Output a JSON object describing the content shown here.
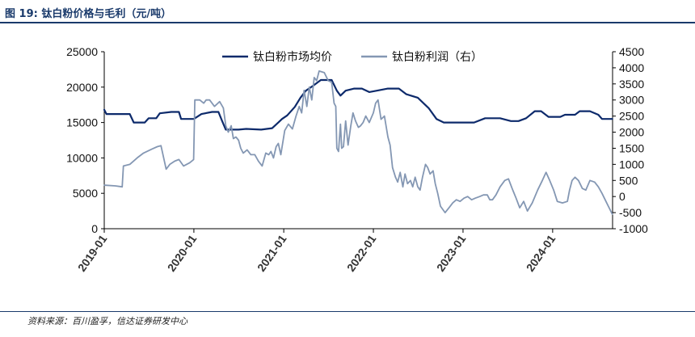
{
  "header": {
    "figure_title": "图 19:  钛白粉价格与毛利（元/吨）"
  },
  "footer": {
    "source": "资料来源：百川盈孚，信达证券研发中心"
  },
  "colors": {
    "price_line": "#0d2a6b",
    "profit_line": "#8497b3",
    "axis": "#000000",
    "title": "#1a3a6b"
  },
  "chart_data": {
    "type": "line",
    "title": "",
    "xlabel": "",
    "ylabel_left": "",
    "ylabel_right": "",
    "grid": false,
    "legend_position": "top-center",
    "x_ticks": [
      "2019-01",
      "2020-01",
      "2021-01",
      "2022-01",
      "2023-01",
      "2024-01"
    ],
    "ylim_left": [
      0,
      25000
    ],
    "yticks_left": [
      "0",
      "5000",
      "10000",
      "15000",
      "20000",
      "25000"
    ],
    "ylim_right": [
      -1000,
      4500
    ],
    "yticks_right": [
      "-1000",
      "-500",
      "0",
      "500",
      "1000",
      "1500",
      "2000",
      "2500",
      "3000",
      "3500",
      "4000",
      "4500"
    ],
    "series": [
      {
        "name": "钛白粉市场均价",
        "axis": "left",
        "color": "#0d2a6b",
        "points": [
          [
            "2019-01-01",
            16800
          ],
          [
            "2019-01-10",
            16200
          ],
          [
            "2019-03-15",
            16200
          ],
          [
            "2019-04-15",
            16200
          ],
          [
            "2019-05-01",
            15000
          ],
          [
            "2019-06-15",
            15000
          ],
          [
            "2019-07-01",
            15600
          ],
          [
            "2019-08-01",
            15600
          ],
          [
            "2019-08-15",
            16300
          ],
          [
            "2019-10-01",
            16500
          ],
          [
            "2019-11-01",
            16500
          ],
          [
            "2019-11-10",
            15500
          ],
          [
            "2020-01-01",
            15500
          ],
          [
            "2020-02-01",
            16200
          ],
          [
            "2020-03-15",
            16500
          ],
          [
            "2020-04-10",
            16500
          ],
          [
            "2020-04-25",
            15200
          ],
          [
            "2020-05-10",
            14000
          ],
          [
            "2020-07-01",
            14000
          ],
          [
            "2020-08-01",
            14100
          ],
          [
            "2020-10-01",
            14000
          ],
          [
            "2020-11-15",
            14200
          ],
          [
            "2020-12-10",
            15000
          ],
          [
            "2020-12-25",
            15500
          ],
          [
            "2021-01-15",
            16000
          ],
          [
            "2021-02-15",
            17200
          ],
          [
            "2021-03-10",
            18500
          ],
          [
            "2021-04-01",
            19500
          ],
          [
            "2021-05-01",
            20200
          ],
          [
            "2021-06-01",
            21000
          ],
          [
            "2021-07-15",
            21000
          ],
          [
            "2021-08-05",
            19500
          ],
          [
            "2021-08-20",
            18800
          ],
          [
            "2021-09-10",
            19500
          ],
          [
            "2021-10-15",
            19800
          ],
          [
            "2021-11-15",
            19800
          ],
          [
            "2021-12-15",
            19300
          ],
          [
            "2022-01-15",
            19500
          ],
          [
            "2022-03-01",
            19800
          ],
          [
            "2022-04-15",
            19800
          ],
          [
            "2022-05-15",
            19000
          ],
          [
            "2022-07-01",
            18500
          ],
          [
            "2022-08-15",
            17000
          ],
          [
            "2022-09-15",
            15500
          ],
          [
            "2022-10-15",
            15000
          ],
          [
            "2022-12-15",
            15000
          ],
          [
            "2023-01-15",
            15000
          ],
          [
            "2023-02-15",
            15000
          ],
          [
            "2023-04-01",
            15600
          ],
          [
            "2023-06-01",
            15600
          ],
          [
            "2023-07-15",
            15200
          ],
          [
            "2023-08-15",
            15200
          ],
          [
            "2023-09-15",
            15600
          ],
          [
            "2023-10-20",
            16600
          ],
          [
            "2023-11-15",
            16600
          ],
          [
            "2023-12-15",
            15800
          ],
          [
            "2024-02-01",
            15800
          ],
          [
            "2024-02-20",
            16100
          ],
          [
            "2024-04-01",
            16100
          ],
          [
            "2024-04-20",
            16600
          ],
          [
            "2024-06-01",
            16600
          ],
          [
            "2024-07-05",
            16100
          ],
          [
            "2024-07-20",
            15500
          ],
          [
            "2024-08-31",
            15500
          ]
        ]
      },
      {
        "name": "钛白粉利润（右）",
        "axis": "right",
        "color": "#8497b3",
        "points": [
          [
            "2019-01-01",
            350
          ],
          [
            "2019-01-05",
            350
          ],
          [
            "2019-02-15",
            330
          ],
          [
            "2019-03-15",
            300
          ],
          [
            "2019-03-20",
            950
          ],
          [
            "2019-04-15",
            1000
          ],
          [
            "2019-05-15",
            1200
          ],
          [
            "2019-06-10",
            1350
          ],
          [
            "2019-07-15",
            1480
          ],
          [
            "2019-08-05",
            1550
          ],
          [
            "2019-08-20",
            1580
          ],
          [
            "2019-09-10",
            850
          ],
          [
            "2019-09-25",
            1000
          ],
          [
            "2019-10-15",
            1100
          ],
          [
            "2019-11-01",
            1150
          ],
          [
            "2019-11-20",
            950
          ],
          [
            "2019-12-15",
            1050
          ],
          [
            "2019-12-31",
            1150
          ],
          [
            "2020-01-05",
            3000
          ],
          [
            "2020-01-25",
            3000
          ],
          [
            "2020-02-10",
            2900
          ],
          [
            "2020-02-20",
            3000
          ],
          [
            "2020-03-05",
            3000
          ],
          [
            "2020-03-25",
            2800
          ],
          [
            "2020-04-15",
            2950
          ],
          [
            "2020-04-30",
            2750
          ],
          [
            "2020-05-10",
            2200
          ],
          [
            "2020-05-20",
            2000
          ],
          [
            "2020-06-01",
            2200
          ],
          [
            "2020-06-10",
            1800
          ],
          [
            "2020-06-20",
            1850
          ],
          [
            "2020-07-01",
            1750
          ],
          [
            "2020-07-10",
            1500
          ],
          [
            "2020-07-20",
            1350
          ],
          [
            "2020-08-05",
            1450
          ],
          [
            "2020-08-20",
            1300
          ],
          [
            "2020-09-05",
            1300
          ],
          [
            "2020-09-20",
            1100
          ],
          [
            "2020-10-05",
            950
          ],
          [
            "2020-10-20",
            1350
          ],
          [
            "2020-11-01",
            1300
          ],
          [
            "2020-11-10",
            1400
          ],
          [
            "2020-11-20",
            1200
          ],
          [
            "2020-12-01",
            1550
          ],
          [
            "2020-12-10",
            1650
          ],
          [
            "2020-12-20",
            1300
          ],
          [
            "2021-01-05",
            2050
          ],
          [
            "2021-01-20",
            2250
          ],
          [
            "2021-02-05",
            2100
          ],
          [
            "2021-02-20",
            2500
          ],
          [
            "2021-03-05",
            2800
          ],
          [
            "2021-03-15",
            2600
          ],
          [
            "2021-03-25",
            3300
          ],
          [
            "2021-04-05",
            2800
          ],
          [
            "2021-04-15",
            3400
          ],
          [
            "2021-04-25",
            3000
          ],
          [
            "2021-05-05",
            3700
          ],
          [
            "2021-05-15",
            3600
          ],
          [
            "2021-05-25",
            3900
          ],
          [
            "2021-06-15",
            3850
          ],
          [
            "2021-07-01",
            3600
          ],
          [
            "2021-07-15",
            3550
          ],
          [
            "2021-07-25",
            2900
          ],
          [
            "2021-08-01",
            2800
          ],
          [
            "2021-08-05",
            1500
          ],
          [
            "2021-08-12",
            1400
          ],
          [
            "2021-08-20",
            2250
          ],
          [
            "2021-08-25",
            1500
          ],
          [
            "2021-09-01",
            1550
          ],
          [
            "2021-09-10",
            2350
          ],
          [
            "2021-09-20",
            1600
          ],
          [
            "2021-10-01",
            2200
          ],
          [
            "2021-10-10",
            2600
          ],
          [
            "2021-10-20",
            2350
          ],
          [
            "2021-11-01",
            2150
          ],
          [
            "2021-11-10",
            2200
          ],
          [
            "2021-11-20",
            2300
          ],
          [
            "2021-12-01",
            2500
          ],
          [
            "2021-12-15",
            2300
          ],
          [
            "2022-01-01",
            2600
          ],
          [
            "2022-01-10",
            2900
          ],
          [
            "2022-01-20",
            3000
          ],
          [
            "2022-02-01",
            2400
          ],
          [
            "2022-02-15",
            2500
          ],
          [
            "2022-03-01",
            1850
          ],
          [
            "2022-03-10",
            1600
          ],
          [
            "2022-03-20",
            900
          ],
          [
            "2022-04-01",
            600
          ],
          [
            "2022-04-10",
            450
          ],
          [
            "2022-04-20",
            750
          ],
          [
            "2022-05-01",
            300
          ],
          [
            "2022-05-10",
            700
          ],
          [
            "2022-05-20",
            400
          ],
          [
            "2022-06-01",
            500
          ],
          [
            "2022-06-10",
            300
          ],
          [
            "2022-06-20",
            600
          ],
          [
            "2022-07-01",
            300
          ],
          [
            "2022-07-10",
            200
          ],
          [
            "2022-07-20",
            600
          ],
          [
            "2022-08-01",
            1000
          ],
          [
            "2022-08-10",
            900
          ],
          [
            "2022-08-20",
            700
          ],
          [
            "2022-09-01",
            800
          ],
          [
            "2022-09-10",
            400
          ],
          [
            "2022-09-20",
            100
          ],
          [
            "2022-10-01",
            -300
          ],
          [
            "2022-10-20",
            -500
          ],
          [
            "2022-11-05",
            -350
          ],
          [
            "2022-11-20",
            -200
          ],
          [
            "2022-12-05",
            -100
          ],
          [
            "2022-12-20",
            -150
          ],
          [
            "2023-01-05",
            -50
          ],
          [
            "2023-01-20",
            0
          ],
          [
            "2023-02-05",
            -100
          ],
          [
            "2023-02-20",
            -50
          ],
          [
            "2023-03-10",
            0
          ],
          [
            "2023-03-25",
            50
          ],
          [
            "2023-04-10",
            50
          ],
          [
            "2023-04-20",
            -100
          ],
          [
            "2023-05-01",
            -100
          ],
          [
            "2023-05-15",
            50
          ],
          [
            "2023-06-01",
            300
          ],
          [
            "2023-06-20",
            500
          ],
          [
            "2023-07-05",
            550
          ],
          [
            "2023-07-20",
            250
          ],
          [
            "2023-08-05",
            -50
          ],
          [
            "2023-08-20",
            -350
          ],
          [
            "2023-09-05",
            -150
          ],
          [
            "2023-09-20",
            -450
          ],
          [
            "2023-10-10",
            -200
          ],
          [
            "2023-11-01",
            200
          ],
          [
            "2023-11-20",
            500
          ],
          [
            "2023-12-05",
            750
          ],
          [
            "2023-12-20",
            500
          ],
          [
            "2024-01-05",
            200
          ],
          [
            "2024-01-20",
            -150
          ],
          [
            "2024-02-10",
            -200
          ],
          [
            "2024-03-01",
            -150
          ],
          [
            "2024-03-10",
            200
          ],
          [
            "2024-03-20",
            500
          ],
          [
            "2024-04-01",
            600
          ],
          [
            "2024-04-15",
            500
          ],
          [
            "2024-05-01",
            250
          ],
          [
            "2024-05-15",
            200
          ],
          [
            "2024-06-01",
            500
          ],
          [
            "2024-06-20",
            450
          ],
          [
            "2024-07-05",
            300
          ],
          [
            "2024-07-20",
            100
          ],
          [
            "2024-08-05",
            -150
          ],
          [
            "2024-08-31",
            -550
          ]
        ]
      }
    ]
  }
}
